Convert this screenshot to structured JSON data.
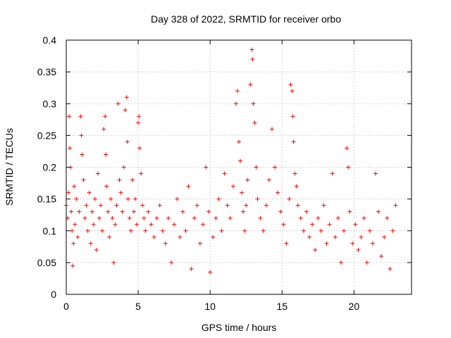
{
  "chart_data": {
    "type": "scatter",
    "title": "Day 328 of 2022, SRMTID for receiver orbo",
    "xlabel": "GPS time / hours",
    "ylabel": "SRMTID / TECUs",
    "xlim": [
      0,
      24
    ],
    "ylim": [
      0,
      0.4
    ],
    "xticks": [
      0,
      5,
      10,
      15,
      20
    ],
    "xtick_labels": [
      "0",
      "5",
      "10",
      "15",
      "20"
    ],
    "yticks": [
      0,
      0.05,
      0.1,
      0.15,
      0.2,
      0.25,
      0.3,
      0.35,
      0.4
    ],
    "ytick_labels": [
      "0",
      "0.05",
      "0.1",
      "0.15",
      "0.2",
      "0.25",
      "0.3",
      "0.35",
      "0.4"
    ],
    "grid": true,
    "marker": "+",
    "color": "#ff0000",
    "series": [
      {
        "name": "SRMTID",
        "points": [
          [
            0.0,
            0.14
          ],
          [
            0.1,
            0.12
          ],
          [
            0.15,
            0.16
          ],
          [
            0.2,
            0.28
          ],
          [
            0.25,
            0.23
          ],
          [
            0.3,
            0.2
          ],
          [
            0.35,
            0.13
          ],
          [
            0.4,
            0.1
          ],
          [
            0.45,
            0.045
          ],
          [
            0.5,
            0.08
          ],
          [
            0.55,
            0.17
          ],
          [
            0.6,
            0.11
          ],
          [
            0.7,
            0.15
          ],
          [
            0.8,
            0.09
          ],
          [
            0.9,
            0.13
          ],
          [
            1.0,
            0.28
          ],
          [
            1.05,
            0.25
          ],
          [
            1.1,
            0.22
          ],
          [
            1.2,
            0.18
          ],
          [
            1.3,
            0.12
          ],
          [
            1.4,
            0.14
          ],
          [
            1.5,
            0.1
          ],
          [
            1.6,
            0.16
          ],
          [
            1.7,
            0.08
          ],
          [
            1.8,
            0.13
          ],
          [
            1.9,
            0.11
          ],
          [
            2.0,
            0.15
          ],
          [
            2.1,
            0.07
          ],
          [
            2.2,
            0.19
          ],
          [
            2.3,
            0.12
          ],
          [
            2.4,
            0.14
          ],
          [
            2.5,
            0.1
          ],
          [
            2.6,
            0.26
          ],
          [
            2.7,
            0.28
          ],
          [
            2.75,
            0.22
          ],
          [
            2.8,
            0.17
          ],
          [
            2.9,
            0.13
          ],
          [
            3.0,
            0.09
          ],
          [
            3.1,
            0.15
          ],
          [
            3.2,
            0.12
          ],
          [
            3.3,
            0.05
          ],
          [
            3.4,
            0.11
          ],
          [
            3.5,
            0.14
          ],
          [
            3.6,
            0.3
          ],
          [
            3.7,
            0.18
          ],
          [
            3.8,
            0.16
          ],
          [
            3.9,
            0.13
          ],
          [
            4.0,
            0.2
          ],
          [
            4.1,
            0.29
          ],
          [
            4.2,
            0.31
          ],
          [
            4.25,
            0.24
          ],
          [
            4.3,
            0.15
          ],
          [
            4.4,
            0.12
          ],
          [
            4.5,
            0.1
          ],
          [
            4.6,
            0.18
          ],
          [
            4.7,
            0.13
          ],
          [
            4.8,
            0.15
          ],
          [
            4.9,
            0.11
          ],
          [
            5.0,
            0.27
          ],
          [
            5.05,
            0.28
          ],
          [
            5.1,
            0.23
          ],
          [
            5.2,
            0.19
          ],
          [
            5.3,
            0.14
          ],
          [
            5.4,
            0.12
          ],
          [
            5.5,
            0.1
          ],
          [
            5.7,
            0.13
          ],
          [
            5.9,
            0.11
          ],
          [
            6.1,
            0.09
          ],
          [
            6.3,
            0.12
          ],
          [
            6.5,
            0.14
          ],
          [
            6.7,
            0.1
          ],
          [
            6.9,
            0.08
          ],
          [
            7.1,
            0.12
          ],
          [
            7.3,
            0.05
          ],
          [
            7.5,
            0.11
          ],
          [
            7.7,
            0.15
          ],
          [
            7.9,
            0.09
          ],
          [
            8.1,
            0.13
          ],
          [
            8.3,
            0.1
          ],
          [
            8.5,
            0.17
          ],
          [
            8.7,
            0.04
          ],
          [
            8.9,
            0.12
          ],
          [
            9.1,
            0.14
          ],
          [
            9.3,
            0.08
          ],
          [
            9.5,
            0.11
          ],
          [
            9.7,
            0.2
          ],
          [
            9.9,
            0.13
          ],
          [
            10.0,
            0.035
          ],
          [
            10.2,
            0.09
          ],
          [
            10.4,
            0.12
          ],
          [
            10.6,
            0.15
          ],
          [
            10.8,
            0.1
          ],
          [
            11.0,
            0.19
          ],
          [
            11.2,
            0.14
          ],
          [
            11.4,
            0.12
          ],
          [
            11.6,
            0.17
          ],
          [
            11.8,
            0.3
          ],
          [
            11.9,
            0.32
          ],
          [
            12.0,
            0.24
          ],
          [
            12.1,
            0.21
          ],
          [
            12.2,
            0.16
          ],
          [
            12.3,
            0.13
          ],
          [
            12.4,
            0.1
          ],
          [
            12.5,
            0.14
          ],
          [
            12.6,
            0.18
          ],
          [
            12.8,
            0.33
          ],
          [
            12.9,
            0.385
          ],
          [
            12.95,
            0.37
          ],
          [
            13.0,
            0.3
          ],
          [
            13.1,
            0.27
          ],
          [
            13.2,
            0.2
          ],
          [
            13.3,
            0.15
          ],
          [
            13.5,
            0.12
          ],
          [
            13.7,
            0.1
          ],
          [
            13.9,
            0.14
          ],
          [
            14.1,
            0.18
          ],
          [
            14.3,
            0.26
          ],
          [
            14.5,
            0.2
          ],
          [
            14.7,
            0.16
          ],
          [
            14.9,
            0.13
          ],
          [
            15.1,
            0.11
          ],
          [
            15.3,
            0.08
          ],
          [
            15.5,
            0.15
          ],
          [
            15.6,
            0.33
          ],
          [
            15.7,
            0.32
          ],
          [
            15.75,
            0.28
          ],
          [
            15.8,
            0.24
          ],
          [
            15.9,
            0.19
          ],
          [
            16.0,
            0.17
          ],
          [
            16.1,
            0.14
          ],
          [
            16.3,
            0.12
          ],
          [
            16.5,
            0.1
          ],
          [
            16.7,
            0.13
          ],
          [
            16.9,
            0.09
          ],
          [
            17.1,
            0.11
          ],
          [
            17.3,
            0.07
          ],
          [
            17.5,
            0.12
          ],
          [
            17.7,
            0.1
          ],
          [
            17.9,
            0.14
          ],
          [
            18.1,
            0.08
          ],
          [
            18.3,
            0.11
          ],
          [
            18.5,
            0.19
          ],
          [
            18.7,
            0.09
          ],
          [
            18.9,
            0.12
          ],
          [
            19.1,
            0.05
          ],
          [
            19.3,
            0.1
          ],
          [
            19.5,
            0.23
          ],
          [
            19.6,
            0.2
          ],
          [
            19.7,
            0.13
          ],
          [
            19.9,
            0.08
          ],
          [
            20.1,
            0.11
          ],
          [
            20.3,
            0.07
          ],
          [
            20.5,
            0.09
          ],
          [
            20.7,
            0.12
          ],
          [
            20.9,
            0.05
          ],
          [
            21.1,
            0.1
          ],
          [
            21.3,
            0.08
          ],
          [
            21.5,
            0.19
          ],
          [
            21.7,
            0.13
          ],
          [
            21.9,
            0.06
          ],
          [
            22.1,
            0.09
          ],
          [
            22.3,
            0.12
          ],
          [
            22.5,
            0.04
          ],
          [
            22.7,
            0.1
          ],
          [
            22.9,
            0.14
          ]
        ]
      }
    ]
  }
}
